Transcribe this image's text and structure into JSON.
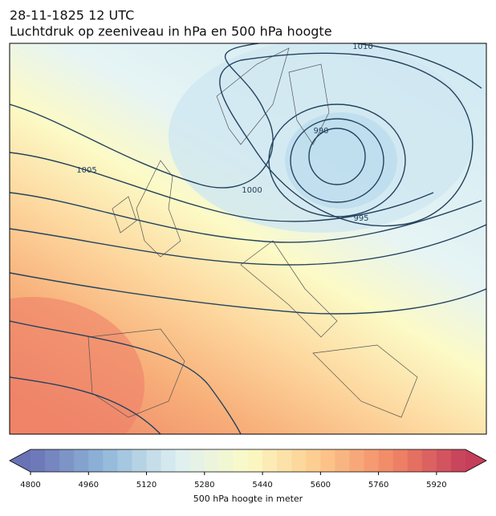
{
  "title": "28-11-1825 12 UTC",
  "subtitle": "Luchtdruk op zeeniveau in hPa en 500 hPa hoogte",
  "isobar_labels": [
    1010,
    990,
    1005,
    1000,
    995
  ],
  "colorbar": {
    "lim": [
      4800,
      6000
    ],
    "ticks": [
      4800,
      4960,
      5120,
      5280,
      5440,
      5600,
      5760,
      5920
    ],
    "label": "500 hPa hoogte in meter"
  }
}
